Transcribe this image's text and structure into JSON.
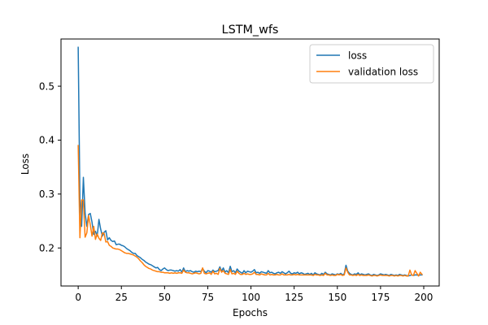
{
  "chart_data": {
    "type": "line",
    "title": "LSTM_wfs",
    "xlabel": "Epochs",
    "ylabel": "Loss",
    "xlim": [
      -9.95,
      208.95
    ],
    "ylim": [
      0.1295,
      0.5875
    ],
    "xticks": [
      0,
      25,
      50,
      75,
      100,
      125,
      150,
      175,
      200
    ],
    "yticks": [
      0.2,
      0.3,
      0.4,
      0.5
    ],
    "ytick_labels": [
      "0.2",
      "0.3",
      "0.4",
      "0.5"
    ],
    "grid": false,
    "legend_position": "top-right",
    "series": [
      {
        "name": "loss",
        "color": "#1f77b4",
        "x": [
          0,
          1,
          2,
          3,
          4,
          5,
          6,
          7,
          8,
          9,
          10,
          11,
          12,
          13,
          14,
          15,
          16,
          17,
          18,
          19,
          20,
          21,
          22,
          23,
          24,
          25,
          26,
          27,
          28,
          29,
          30,
          31,
          32,
          33,
          34,
          35,
          36,
          37,
          38,
          39,
          40,
          41,
          42,
          43,
          44,
          45,
          46,
          47,
          48,
          49,
          50,
          51,
          52,
          53,
          54,
          55,
          56,
          57,
          58,
          59,
          60,
          61,
          62,
          63,
          64,
          65,
          66,
          67,
          68,
          69,
          70,
          71,
          72,
          73,
          74,
          75,
          76,
          77,
          78,
          79,
          80,
          81,
          82,
          83,
          84,
          85,
          86,
          87,
          88,
          89,
          90,
          91,
          92,
          93,
          94,
          95,
          96,
          97,
          98,
          99,
          100,
          101,
          102,
          103,
          104,
          105,
          106,
          107,
          108,
          109,
          110,
          111,
          112,
          113,
          114,
          115,
          116,
          117,
          118,
          119,
          120,
          121,
          122,
          123,
          124,
          125,
          126,
          127,
          128,
          129,
          130,
          131,
          132,
          133,
          134,
          135,
          136,
          137,
          138,
          139,
          140,
          141,
          142,
          143,
          144,
          145,
          146,
          147,
          148,
          149,
          150,
          151,
          152,
          153,
          154,
          155,
          156,
          157,
          158,
          159,
          160,
          161,
          162,
          163,
          164,
          165,
          166,
          167,
          168,
          169,
          170,
          171,
          172,
          173,
          174,
          175,
          176,
          177,
          178,
          179,
          180,
          181,
          182,
          183,
          184,
          185,
          186,
          187,
          188,
          189,
          190,
          191,
          192,
          193,
          194,
          195,
          196,
          197,
          198,
          199
        ],
        "y": [
          0.572,
          0.29,
          0.24,
          0.331,
          0.265,
          0.24,
          0.262,
          0.264,
          0.248,
          0.225,
          0.231,
          0.222,
          0.253,
          0.235,
          0.222,
          0.229,
          0.232,
          0.215,
          0.219,
          0.214,
          0.212,
          0.213,
          0.206,
          0.207,
          0.207,
          0.205,
          0.204,
          0.202,
          0.199,
          0.197,
          0.195,
          0.192,
          0.19,
          0.19,
          0.186,
          0.184,
          0.182,
          0.179,
          0.177,
          0.174,
          0.172,
          0.17,
          0.169,
          0.167,
          0.165,
          0.163,
          0.164,
          0.16,
          0.158,
          0.161,
          0.163,
          0.16,
          0.158,
          0.159,
          0.159,
          0.158,
          0.157,
          0.158,
          0.157,
          0.16,
          0.155,
          0.163,
          0.156,
          0.158,
          0.157,
          0.158,
          0.156,
          0.155,
          0.157,
          0.156,
          0.157,
          0.156,
          0.162,
          0.157,
          0.154,
          0.158,
          0.157,
          0.155,
          0.159,
          0.156,
          0.157,
          0.158,
          0.165,
          0.157,
          0.163,
          0.155,
          0.158,
          0.154,
          0.166,
          0.156,
          0.158,
          0.154,
          0.161,
          0.157,
          0.155,
          0.153,
          0.158,
          0.154,
          0.157,
          0.156,
          0.155,
          0.157,
          0.16,
          0.154,
          0.155,
          0.153,
          0.156,
          0.155,
          0.154,
          0.153,
          0.158,
          0.154,
          0.155,
          0.153,
          0.152,
          0.154,
          0.155,
          0.153,
          0.156,
          0.154,
          0.152,
          0.154,
          0.157,
          0.153,
          0.152,
          0.154,
          0.153,
          0.155,
          0.152,
          0.154,
          0.153,
          0.151,
          0.152,
          0.153,
          0.151,
          0.153,
          0.15,
          0.154,
          0.152,
          0.151,
          0.15,
          0.153,
          0.151,
          0.155,
          0.152,
          0.151,
          0.15,
          0.152,
          0.151,
          0.15,
          0.152,
          0.151,
          0.153,
          0.15,
          0.152,
          0.168,
          0.157,
          0.153,
          0.151,
          0.15,
          0.152,
          0.151,
          0.154,
          0.15,
          0.152,
          0.151,
          0.15,
          0.151,
          0.152,
          0.15,
          0.149,
          0.151,
          0.15,
          0.149,
          0.15,
          0.152,
          0.151,
          0.15,
          0.151,
          0.15,
          0.149,
          0.151,
          0.15,
          0.149,
          0.15,
          0.149,
          0.151,
          0.15,
          0.149,
          0.15,
          0.149,
          0.148,
          0.149,
          0.15,
          0.149,
          0.15,
          0.15,
          0.149,
          0.15,
          0.15
        ]
      },
      {
        "name": "validation loss",
        "color": "#ff7f0e",
        "x": [
          0,
          1,
          2,
          3,
          4,
          5,
          6,
          7,
          8,
          9,
          10,
          11,
          12,
          13,
          14,
          15,
          16,
          17,
          18,
          19,
          20,
          21,
          22,
          23,
          24,
          25,
          26,
          27,
          28,
          29,
          30,
          31,
          32,
          33,
          34,
          35,
          36,
          37,
          38,
          39,
          40,
          41,
          42,
          43,
          44,
          45,
          46,
          47,
          48,
          49,
          50,
          51,
          52,
          53,
          54,
          55,
          56,
          57,
          58,
          59,
          60,
          61,
          62,
          63,
          64,
          65,
          66,
          67,
          68,
          69,
          70,
          71,
          72,
          73,
          74,
          75,
          76,
          77,
          78,
          79,
          80,
          81,
          82,
          83,
          84,
          85,
          86,
          87,
          88,
          89,
          90,
          91,
          92,
          93,
          94,
          95,
          96,
          97,
          98,
          99,
          100,
          101,
          102,
          103,
          104,
          105,
          106,
          107,
          108,
          109,
          110,
          111,
          112,
          113,
          114,
          115,
          116,
          117,
          118,
          119,
          120,
          121,
          122,
          123,
          124,
          125,
          126,
          127,
          128,
          129,
          130,
          131,
          132,
          133,
          134,
          135,
          136,
          137,
          138,
          139,
          140,
          141,
          142,
          143,
          144,
          145,
          146,
          147,
          148,
          149,
          150,
          151,
          152,
          153,
          154,
          155,
          156,
          157,
          158,
          159,
          160,
          161,
          162,
          163,
          164,
          165,
          166,
          167,
          168,
          169,
          170,
          171,
          172,
          173,
          174,
          175,
          176,
          177,
          178,
          179,
          180,
          181,
          182,
          183,
          184,
          185,
          186,
          187,
          188,
          189,
          190,
          191,
          192,
          193,
          194,
          195,
          196,
          197,
          198,
          199
        ],
        "y": [
          0.39,
          0.219,
          0.289,
          0.289,
          0.22,
          0.228,
          0.26,
          0.243,
          0.222,
          0.24,
          0.216,
          0.226,
          0.218,
          0.214,
          0.228,
          0.227,
          0.211,
          0.212,
          0.205,
          0.203,
          0.2,
          0.199,
          0.198,
          0.198,
          0.197,
          0.195,
          0.193,
          0.191,
          0.19,
          0.19,
          0.189,
          0.188,
          0.187,
          0.185,
          0.183,
          0.18,
          0.176,
          0.173,
          0.169,
          0.166,
          0.164,
          0.162,
          0.161,
          0.159,
          0.158,
          0.157,
          0.156,
          0.156,
          0.155,
          0.155,
          0.154,
          0.154,
          0.154,
          0.153,
          0.154,
          0.153,
          0.154,
          0.153,
          0.154,
          0.154,
          0.153,
          0.159,
          0.155,
          0.154,
          0.154,
          0.153,
          0.152,
          0.153,
          0.154,
          0.153,
          0.152,
          0.153,
          0.163,
          0.153,
          0.152,
          0.153,
          0.154,
          0.151,
          0.157,
          0.152,
          0.153,
          0.151,
          0.162,
          0.155,
          0.158,
          0.153,
          0.152,
          0.151,
          0.16,
          0.152,
          0.153,
          0.151,
          0.157,
          0.153,
          0.151,
          0.151,
          0.153,
          0.151,
          0.152,
          0.151,
          0.151,
          0.152,
          0.155,
          0.151,
          0.151,
          0.15,
          0.152,
          0.151,
          0.15,
          0.15,
          0.153,
          0.15,
          0.151,
          0.15,
          0.15,
          0.151,
          0.15,
          0.15,
          0.152,
          0.15,
          0.15,
          0.15,
          0.151,
          0.15,
          0.15,
          0.151,
          0.15,
          0.151,
          0.15,
          0.15,
          0.15,
          0.15,
          0.15,
          0.15,
          0.15,
          0.15,
          0.149,
          0.151,
          0.15,
          0.15,
          0.149,
          0.15,
          0.149,
          0.153,
          0.15,
          0.15,
          0.149,
          0.15,
          0.149,
          0.149,
          0.151,
          0.15,
          0.151,
          0.149,
          0.15,
          0.163,
          0.155,
          0.15,
          0.15,
          0.149,
          0.15,
          0.149,
          0.151,
          0.149,
          0.15,
          0.149,
          0.149,
          0.149,
          0.15,
          0.149,
          0.148,
          0.149,
          0.149,
          0.148,
          0.149,
          0.15,
          0.149,
          0.149,
          0.149,
          0.149,
          0.148,
          0.149,
          0.149,
          0.148,
          0.149,
          0.148,
          0.149,
          0.149,
          0.148,
          0.149,
          0.148,
          0.148,
          0.159,
          0.15,
          0.149,
          0.158,
          0.153,
          0.148,
          0.155,
          0.151
        ]
      }
    ]
  }
}
